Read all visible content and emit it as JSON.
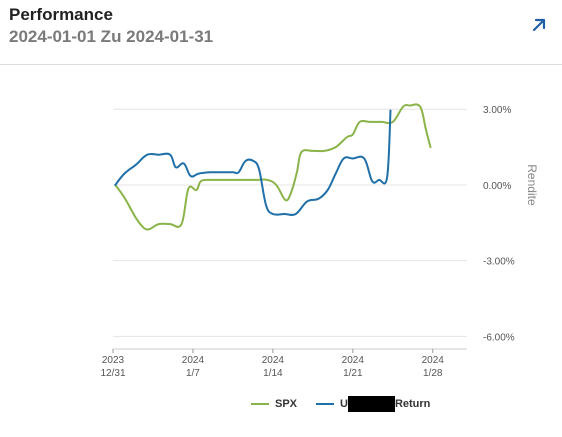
{
  "header": {
    "title": "Performance",
    "subtitle": "2024-01-01 Zu 2024-01-31",
    "expand_icon": "arrow-up-right-icon"
  },
  "colors": {
    "spx": "#8ab44a",
    "portfolio": "#1f6fa8",
    "expand_icon": "#1f5fa8",
    "grid": "#e4e4e4",
    "axis_text": "#555555"
  },
  "legend": {
    "spx_label": "SPX",
    "portfolio_prefix": "U",
    "portfolio_suffix": "Return"
  },
  "chart_data": {
    "type": "line",
    "ylabel": "Rendite",
    "ylim": [
      -6.5,
      4.0
    ],
    "y_ticks": [
      {
        "value": 3,
        "label": "3.00%"
      },
      {
        "value": 0,
        "label": "0.00%"
      },
      {
        "value": -3,
        "label": "-3.00%"
      },
      {
        "value": -6,
        "label": "-6.00%"
      }
    ],
    "x_ticks": [
      {
        "day": 0,
        "top": "2023",
        "bottom": "12/31"
      },
      {
        "day": 7,
        "top": "2024",
        "bottom": "1/7"
      },
      {
        "day": 14,
        "top": "2024",
        "bottom": "1/14"
      },
      {
        "day": 21,
        "top": "2024",
        "bottom": "1/21"
      },
      {
        "day": 28,
        "top": "2024",
        "bottom": "1/28"
      }
    ],
    "x_range": [
      0,
      31
    ],
    "series": [
      {
        "name": "SPX",
        "color_key": "spx",
        "points": [
          [
            0.2,
            0.0
          ],
          [
            1.0,
            -0.5
          ],
          [
            2.0,
            -1.3
          ],
          [
            2.7,
            -1.7
          ],
          [
            3.2,
            -1.75
          ],
          [
            4.0,
            -1.55
          ],
          [
            5.0,
            -1.55
          ],
          [
            6.0,
            -1.55
          ],
          [
            6.6,
            -0.15
          ],
          [
            7.3,
            -0.2
          ],
          [
            7.7,
            0.15
          ],
          [
            8.5,
            0.2
          ],
          [
            9.5,
            0.2
          ],
          [
            10.5,
            0.2
          ],
          [
            11.5,
            0.2
          ],
          [
            12.5,
            0.2
          ],
          [
            13.5,
            0.2
          ],
          [
            14.3,
            0.0
          ],
          [
            15.1,
            -0.6
          ],
          [
            15.6,
            -0.3
          ],
          [
            16.1,
            0.5
          ],
          [
            16.5,
            1.3
          ],
          [
            17.5,
            1.35
          ],
          [
            18.5,
            1.35
          ],
          [
            19.5,
            1.5
          ],
          [
            20.5,
            1.9
          ],
          [
            21.0,
            2.0
          ],
          [
            21.6,
            2.5
          ],
          [
            22.5,
            2.5
          ],
          [
            23.5,
            2.5
          ],
          [
            24.5,
            2.5
          ],
          [
            25.4,
            3.1
          ],
          [
            26.0,
            3.15
          ],
          [
            26.9,
            3.1
          ],
          [
            27.4,
            2.2
          ],
          [
            27.8,
            1.5
          ]
        ]
      },
      {
        "name": "U…Return",
        "color_key": "portfolio",
        "points": [
          [
            0.2,
            0.0
          ],
          [
            1.0,
            0.45
          ],
          [
            2.0,
            0.8
          ],
          [
            3.0,
            1.2
          ],
          [
            4.0,
            1.2
          ],
          [
            5.0,
            1.2
          ],
          [
            5.5,
            0.7
          ],
          [
            6.2,
            0.85
          ],
          [
            6.8,
            0.35
          ],
          [
            7.5,
            0.45
          ],
          [
            8.5,
            0.5
          ],
          [
            9.5,
            0.5
          ],
          [
            10.5,
            0.5
          ],
          [
            11.0,
            0.5
          ],
          [
            11.6,
            0.95
          ],
          [
            12.3,
            0.95
          ],
          [
            12.8,
            0.6
          ],
          [
            13.4,
            -0.8
          ],
          [
            14.0,
            -1.15
          ],
          [
            15.0,
            -1.15
          ],
          [
            16.0,
            -1.15
          ],
          [
            17.0,
            -0.65
          ],
          [
            18.0,
            -0.55
          ],
          [
            18.8,
            -0.2
          ],
          [
            19.5,
            0.45
          ],
          [
            20.2,
            1.05
          ],
          [
            21.0,
            1.05
          ],
          [
            22.0,
            1.05
          ],
          [
            22.7,
            0.15
          ],
          [
            23.3,
            0.2
          ],
          [
            24.0,
            0.3
          ],
          [
            24.3,
            2.95
          ]
        ]
      }
    ]
  }
}
